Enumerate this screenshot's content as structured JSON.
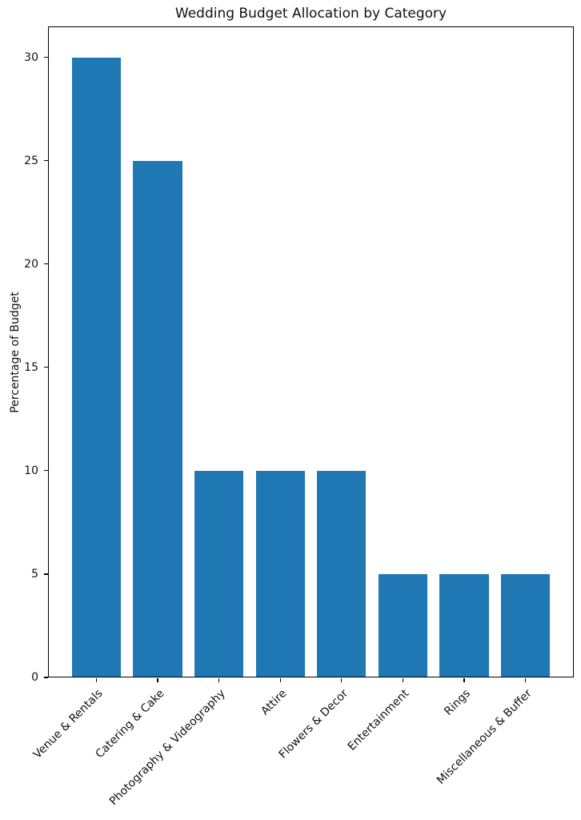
{
  "chart_data": {
    "type": "bar",
    "title": "Wedding Budget Allocation by Category",
    "xlabel": "",
    "ylabel": "Percentage of Budget",
    "categories": [
      "Venue & Rentals",
      "Catering & Cake",
      "Photography & Videography",
      "Attire",
      "Flowers & Decor",
      "Entertainment",
      "Rings",
      "Miscellaneous & Buffer"
    ],
    "values": [
      30,
      25,
      10,
      10,
      10,
      5,
      5,
      5
    ],
    "yticks": [
      0,
      5,
      10,
      15,
      20,
      25,
      30
    ],
    "ylim": [
      0,
      31.5
    ],
    "xlim": [
      -0.79,
      7.79
    ],
    "bar_width": 0.8,
    "x_tick_rotation": 45,
    "grid": false,
    "colors": {
      "bar": "#1f77b4",
      "axis": "#000000",
      "text": "#111111",
      "background": "#ffffff"
    }
  }
}
